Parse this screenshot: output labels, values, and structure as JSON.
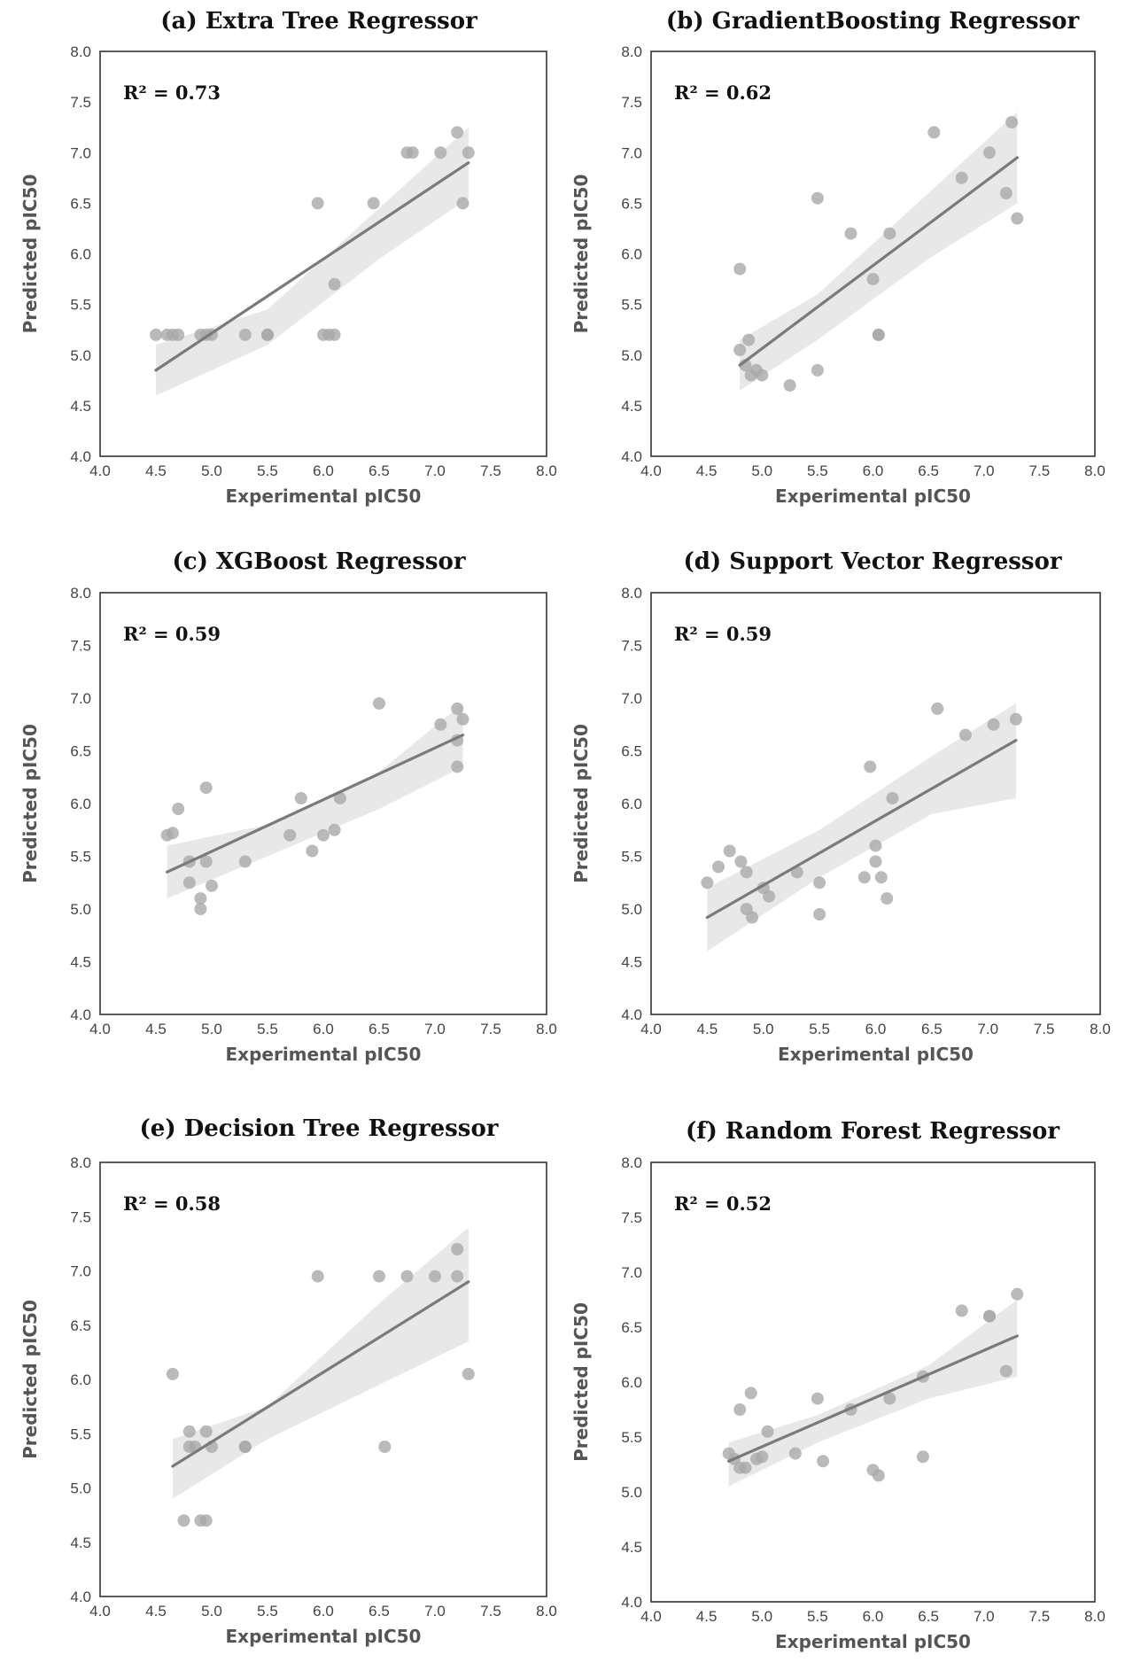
{
  "chart_data": [
    {
      "type": "scatter",
      "title": "(a) Extra Tree Regressor",
      "xlabel": "Experimental pIC50",
      "ylabel": "Predicted pIC50",
      "xlim": [
        4.0,
        8.0
      ],
      "ylim": [
        4.0,
        8.0
      ],
      "xticks": [
        "4.0",
        "4.5",
        "5.0",
        "5.5",
        "6.0",
        "6.5",
        "7.0",
        "7.5",
        "8.0"
      ],
      "yticks": [
        "4.0",
        "4.5",
        "5.0",
        "5.5",
        "6.0",
        "6.5",
        "7.0",
        "7.5",
        "8.0"
      ],
      "annotation": "R² = 0.73",
      "points": [
        [
          4.5,
          5.2
        ],
        [
          4.6,
          5.2
        ],
        [
          4.65,
          5.2
        ],
        [
          4.7,
          5.2
        ],
        [
          4.9,
          5.2
        ],
        [
          4.95,
          5.2
        ],
        [
          5.0,
          5.2
        ],
        [
          5.3,
          5.2
        ],
        [
          5.5,
          5.2
        ],
        [
          5.5,
          5.2
        ],
        [
          5.95,
          6.5
        ],
        [
          6.0,
          5.2
        ],
        [
          6.05,
          5.2
        ],
        [
          6.1,
          5.2
        ],
        [
          6.1,
          5.7
        ],
        [
          6.45,
          6.5
        ],
        [
          6.75,
          7.0
        ],
        [
          6.8,
          7.0
        ],
        [
          7.05,
          7.0
        ],
        [
          7.2,
          7.2
        ],
        [
          7.25,
          6.5
        ],
        [
          7.3,
          7.0
        ]
      ],
      "fit": {
        "x": [
          4.5,
          7.3
        ],
        "y": [
          4.85,
          6.9
        ]
      },
      "band": {
        "x": [
          4.5,
          5.5,
          6.5,
          7.3
        ],
        "upper": [
          5.1,
          5.45,
          6.45,
          7.25
        ],
        "lower": [
          4.6,
          5.1,
          5.95,
          6.55
        ]
      }
    },
    {
      "type": "scatter",
      "title": "(b) GradientBoosting Regressor",
      "xlabel": "Experimental pIC50",
      "ylabel": "Predicted pIC50",
      "xlim": [
        4.0,
        8.0
      ],
      "ylim": [
        4.0,
        8.0
      ],
      "xticks": [
        "4.0",
        "4.5",
        "5.0",
        "5.5",
        "6.0",
        "6.5",
        "7.0",
        "7.5",
        "8.0"
      ],
      "yticks": [
        "4.0",
        "4.5",
        "5.0",
        "5.5",
        "6.0",
        "6.5",
        "7.0",
        "7.5",
        "8.0"
      ],
      "annotation": "R² = 0.62",
      "points": [
        [
          4.8,
          5.85
        ],
        [
          4.8,
          5.05
        ],
        [
          4.85,
          4.9
        ],
        [
          4.88,
          5.15
        ],
        [
          4.9,
          4.8
        ],
        [
          4.95,
          4.85
        ],
        [
          5.0,
          4.8
        ],
        [
          5.25,
          4.7
        ],
        [
          5.5,
          4.85
        ],
        [
          5.5,
          6.55
        ],
        [
          5.8,
          6.2
        ],
        [
          6.0,
          5.75
        ],
        [
          6.05,
          5.2
        ],
        [
          6.05,
          5.2
        ],
        [
          6.15,
          6.2
        ],
        [
          6.55,
          7.2
        ],
        [
          6.8,
          6.75
        ],
        [
          7.05,
          7.0
        ],
        [
          7.2,
          6.6
        ],
        [
          7.25,
          7.3
        ],
        [
          7.3,
          6.35
        ]
      ],
      "fit": {
        "x": [
          4.8,
          7.3
        ],
        "y": [
          4.9,
          6.95
        ]
      },
      "band": {
        "x": [
          4.8,
          5.5,
          6.5,
          7.3
        ],
        "upper": [
          5.15,
          5.6,
          6.6,
          7.4
        ],
        "lower": [
          4.65,
          5.15,
          5.95,
          6.5
        ]
      }
    },
    {
      "type": "scatter",
      "title": "(c) XGBoost Regressor",
      "xlabel": "Experimental pIC50",
      "ylabel": "Predicted pIC50",
      "xlim": [
        4.0,
        8.0
      ],
      "ylim": [
        4.0,
        8.0
      ],
      "xticks": [
        "4.0",
        "4.5",
        "5.0",
        "5.5",
        "6.0",
        "6.5",
        "7.0",
        "7.5",
        "8.0"
      ],
      "yticks": [
        "4.0",
        "4.5",
        "5.0",
        "5.5",
        "6.0",
        "6.5",
        "7.0",
        "7.5",
        "8.0"
      ],
      "annotation": "R² = 0.59",
      "points": [
        [
          4.6,
          5.7
        ],
        [
          4.65,
          5.72
        ],
        [
          4.7,
          5.95
        ],
        [
          4.8,
          5.45
        ],
        [
          4.8,
          5.25
        ],
        [
          4.9,
          5.0
        ],
        [
          4.9,
          5.1
        ],
        [
          4.95,
          6.15
        ],
        [
          4.95,
          5.45
        ],
        [
          5.0,
          5.22
        ],
        [
          5.3,
          5.45
        ],
        [
          5.7,
          5.7
        ],
        [
          5.8,
          6.05
        ],
        [
          5.9,
          5.55
        ],
        [
          6.0,
          5.7
        ],
        [
          6.1,
          5.75
        ],
        [
          6.15,
          6.05
        ],
        [
          6.5,
          6.95
        ],
        [
          7.05,
          6.75
        ],
        [
          7.2,
          6.9
        ],
        [
          7.2,
          6.6
        ],
        [
          7.2,
          6.35
        ],
        [
          7.25,
          6.8
        ]
      ],
      "fit": {
        "x": [
          4.6,
          7.25
        ],
        "y": [
          5.35,
          6.65
        ]
      },
      "band": {
        "x": [
          4.6,
          5.5,
          6.5,
          7.25
        ],
        "upper": [
          5.6,
          5.8,
          6.3,
          6.95
        ],
        "lower": [
          5.1,
          5.5,
          5.95,
          6.35
        ]
      }
    },
    {
      "type": "scatter",
      "title": "(d) Support Vector Regressor",
      "xlabel": "Experimental pIC50",
      "ylabel": "Predicted pIC50",
      "xlim": [
        4.0,
        8.0
      ],
      "ylim": [
        4.0,
        8.0
      ],
      "xticks": [
        "4.0",
        "4.5",
        "5.0",
        "5.5",
        "6.0",
        "6.5",
        "7.0",
        "7.5",
        "8.0"
      ],
      "yticks": [
        "4.0",
        "4.5",
        "5.0",
        "5.5",
        "6.0",
        "6.5",
        "7.0",
        "7.5",
        "8.0"
      ],
      "annotation": "R² = 0.59",
      "points": [
        [
          4.5,
          5.25
        ],
        [
          4.6,
          5.4
        ],
        [
          4.7,
          5.55
        ],
        [
          4.8,
          5.45
        ],
        [
          4.85,
          5.35
        ],
        [
          4.85,
          5.0
        ],
        [
          4.9,
          4.92
        ],
        [
          5.0,
          5.2
        ],
        [
          5.05,
          5.12
        ],
        [
          5.3,
          5.35
        ],
        [
          5.5,
          5.25
        ],
        [
          5.5,
          4.95
        ],
        [
          5.9,
          5.3
        ],
        [
          5.95,
          6.35
        ],
        [
          6.0,
          5.6
        ],
        [
          6.0,
          5.45
        ],
        [
          6.05,
          5.3
        ],
        [
          6.1,
          5.1
        ],
        [
          6.15,
          6.05
        ],
        [
          6.55,
          6.9
        ],
        [
          6.8,
          6.65
        ],
        [
          7.05,
          6.75
        ],
        [
          7.25,
          6.8
        ]
      ],
      "fit": {
        "x": [
          4.5,
          7.25
        ],
        "y": [
          4.92,
          6.6
        ]
      },
      "band": {
        "x": [
          4.5,
          5.5,
          6.5,
          7.25
        ],
        "upper": [
          5.2,
          5.75,
          6.45,
          6.95
        ],
        "lower": [
          4.6,
          5.3,
          5.9,
          6.05
        ]
      }
    },
    {
      "type": "scatter",
      "title": "(e) Decision Tree Regressor",
      "xlabel": "Experimental pIC50",
      "ylabel": "Predicted pIC50",
      "xlim": [
        4.0,
        8.0
      ],
      "ylim": [
        4.0,
        8.0
      ],
      "xticks": [
        "4.0",
        "4.5",
        "5.0",
        "5.5",
        "6.0",
        "6.5",
        "7.0",
        "7.5",
        "8.0"
      ],
      "yticks": [
        "4.0",
        "4.5",
        "5.0",
        "5.5",
        "6.0",
        "6.5",
        "7.0",
        "7.5",
        "8.0"
      ],
      "annotation": "R² = 0.58",
      "points": [
        [
          4.65,
          6.05
        ],
        [
          4.75,
          4.7
        ],
        [
          4.8,
          5.38
        ],
        [
          4.8,
          5.52
        ],
        [
          4.85,
          5.38
        ],
        [
          4.9,
          4.7
        ],
        [
          4.95,
          4.7
        ],
        [
          4.95,
          5.52
        ],
        [
          5.0,
          5.38
        ],
        [
          5.3,
          5.38
        ],
        [
          5.3,
          5.38
        ],
        [
          5.95,
          6.95
        ],
        [
          6.5,
          6.95
        ],
        [
          6.55,
          5.38
        ],
        [
          6.75,
          6.95
        ],
        [
          7.0,
          6.95
        ],
        [
          7.2,
          6.95
        ],
        [
          7.2,
          7.2
        ],
        [
          7.3,
          6.05
        ]
      ],
      "fit": {
        "x": [
          4.65,
          7.3
        ],
        "y": [
          5.2,
          6.9
        ]
      },
      "band": {
        "x": [
          4.65,
          5.5,
          6.5,
          7.3
        ],
        "upper": [
          5.45,
          5.75,
          6.7,
          7.4
        ],
        "lower": [
          4.9,
          5.45,
          5.95,
          6.35
        ]
      }
    },
    {
      "type": "scatter",
      "title": "(f) Random Forest Regressor",
      "xlabel": "Experimental pIC50",
      "ylabel": "Predicted pIC50",
      "xlim": [
        4.0,
        8.0
      ],
      "ylim": [
        4.0,
        8.0
      ],
      "xticks": [
        "4.0",
        "4.5",
        "5.0",
        "5.5",
        "6.0",
        "6.5",
        "7.0",
        "7.5",
        "8.0"
      ],
      "yticks": [
        "4.0",
        "4.5",
        "5.0",
        "5.5",
        "6.0",
        "6.5",
        "7.0",
        "7.5",
        "8.0"
      ],
      "annotation": "R² = 0.52",
      "points": [
        [
          4.7,
          5.35
        ],
        [
          4.75,
          5.3
        ],
        [
          4.8,
          5.22
        ],
        [
          4.8,
          5.75
        ],
        [
          4.85,
          5.22
        ],
        [
          4.9,
          5.9
        ],
        [
          4.95,
          5.3
        ],
        [
          5.0,
          5.32
        ],
        [
          5.05,
          5.55
        ],
        [
          5.3,
          5.35
        ],
        [
          5.5,
          5.85
        ],
        [
          5.55,
          5.28
        ],
        [
          5.8,
          5.75
        ],
        [
          6.0,
          5.2
        ],
        [
          6.05,
          5.15
        ],
        [
          6.15,
          5.85
        ],
        [
          6.45,
          6.05
        ],
        [
          6.45,
          5.32
        ],
        [
          6.8,
          6.65
        ],
        [
          7.05,
          6.6
        ],
        [
          7.05,
          6.6
        ],
        [
          7.2,
          6.1
        ],
        [
          7.3,
          6.8
        ]
      ],
      "fit": {
        "x": [
          4.7,
          7.3
        ],
        "y": [
          5.28,
          6.42
        ]
      },
      "band": {
        "x": [
          4.7,
          5.5,
          6.5,
          7.3
        ],
        "upper": [
          5.45,
          5.7,
          6.15,
          6.75
        ],
        "lower": [
          5.05,
          5.45,
          5.85,
          6.05
        ]
      }
    }
  ]
}
